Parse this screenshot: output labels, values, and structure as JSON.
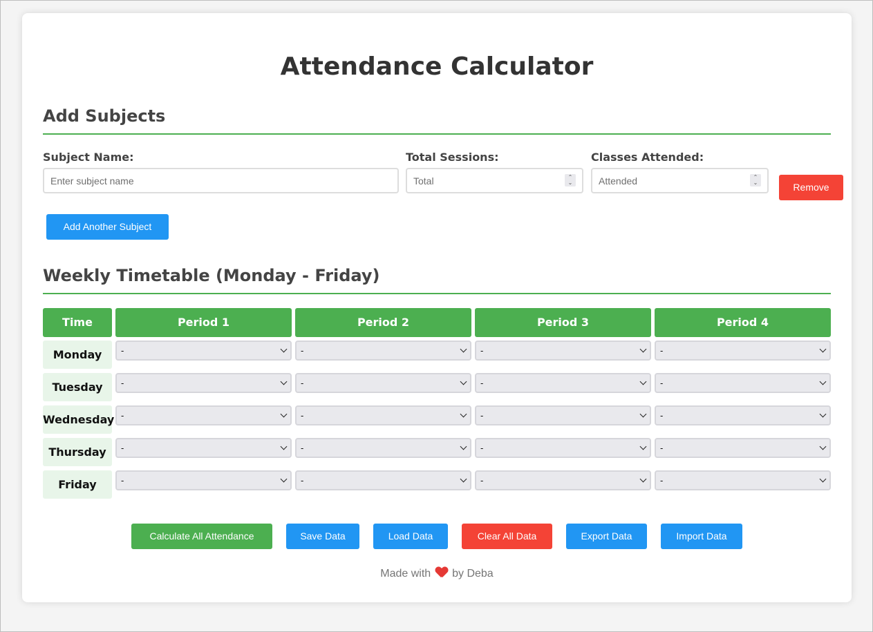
{
  "page_title": "Attendance Calculator",
  "add_subjects": {
    "title": "Add Subjects",
    "subject_label": "Subject Name:",
    "subject_placeholder": "Enter subject name",
    "total_label": "Total Sessions:",
    "total_placeholder": "Total",
    "attended_label": "Classes Attended:",
    "attended_placeholder": "Attended",
    "remove_label": "Remove",
    "add_another_label": "Add Another Subject"
  },
  "timetable": {
    "title": "Weekly Timetable (Monday - Friday)",
    "headers": [
      "Time",
      "Period 1",
      "Period 2",
      "Period 3",
      "Period 4"
    ],
    "days": [
      "Monday",
      "Tuesday",
      "Wednesday",
      "Thursday",
      "Friday"
    ],
    "empty_option": "-"
  },
  "actions": {
    "calculate": "Calculate All Attendance",
    "save": "Save Data",
    "load": "Load Data",
    "clear": "Clear All Data",
    "export": "Export Data",
    "import": "Import Data"
  },
  "footer": {
    "prefix": "Made with",
    "suffix": "by Deba"
  },
  "colors": {
    "accent_green": "#4caf50",
    "button_blue": "#2196f3",
    "button_red": "#f44336",
    "day_bg": "#e8f5e9"
  }
}
